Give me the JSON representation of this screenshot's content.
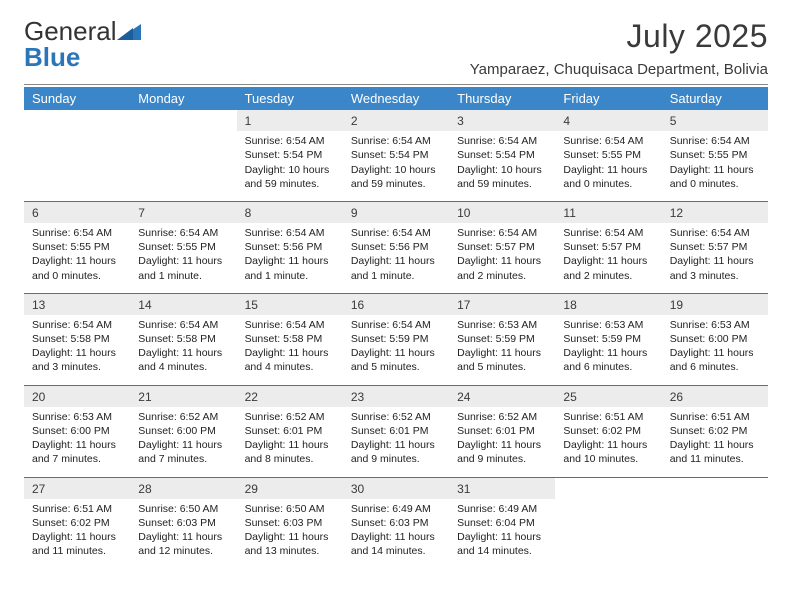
{
  "brand": {
    "word1": "General",
    "word2": "Blue"
  },
  "header": {
    "month_title": "July 2025",
    "location": "Yamparaez, Chuquisaca Department, Bolivia"
  },
  "colors": {
    "header_bg": "#3a86c8",
    "rule": "#3a78b0",
    "daybg": "#ececec"
  },
  "weekdays": [
    "Sunday",
    "Monday",
    "Tuesday",
    "Wednesday",
    "Thursday",
    "Friday",
    "Saturday"
  ],
  "weeks": [
    [
      null,
      null,
      {
        "n": "1",
        "sunrise": "Sunrise: 6:54 AM",
        "sunset": "Sunset: 5:54 PM",
        "daylight": "Daylight: 10 hours and 59 minutes."
      },
      {
        "n": "2",
        "sunrise": "Sunrise: 6:54 AM",
        "sunset": "Sunset: 5:54 PM",
        "daylight": "Daylight: 10 hours and 59 minutes."
      },
      {
        "n": "3",
        "sunrise": "Sunrise: 6:54 AM",
        "sunset": "Sunset: 5:54 PM",
        "daylight": "Daylight: 10 hours and 59 minutes."
      },
      {
        "n": "4",
        "sunrise": "Sunrise: 6:54 AM",
        "sunset": "Sunset: 5:55 PM",
        "daylight": "Daylight: 11 hours and 0 minutes."
      },
      {
        "n": "5",
        "sunrise": "Sunrise: 6:54 AM",
        "sunset": "Sunset: 5:55 PM",
        "daylight": "Daylight: 11 hours and 0 minutes."
      }
    ],
    [
      {
        "n": "6",
        "sunrise": "Sunrise: 6:54 AM",
        "sunset": "Sunset: 5:55 PM",
        "daylight": "Daylight: 11 hours and 0 minutes."
      },
      {
        "n": "7",
        "sunrise": "Sunrise: 6:54 AM",
        "sunset": "Sunset: 5:55 PM",
        "daylight": "Daylight: 11 hours and 1 minute."
      },
      {
        "n": "8",
        "sunrise": "Sunrise: 6:54 AM",
        "sunset": "Sunset: 5:56 PM",
        "daylight": "Daylight: 11 hours and 1 minute."
      },
      {
        "n": "9",
        "sunrise": "Sunrise: 6:54 AM",
        "sunset": "Sunset: 5:56 PM",
        "daylight": "Daylight: 11 hours and 1 minute."
      },
      {
        "n": "10",
        "sunrise": "Sunrise: 6:54 AM",
        "sunset": "Sunset: 5:57 PM",
        "daylight": "Daylight: 11 hours and 2 minutes."
      },
      {
        "n": "11",
        "sunrise": "Sunrise: 6:54 AM",
        "sunset": "Sunset: 5:57 PM",
        "daylight": "Daylight: 11 hours and 2 minutes."
      },
      {
        "n": "12",
        "sunrise": "Sunrise: 6:54 AM",
        "sunset": "Sunset: 5:57 PM",
        "daylight": "Daylight: 11 hours and 3 minutes."
      }
    ],
    [
      {
        "n": "13",
        "sunrise": "Sunrise: 6:54 AM",
        "sunset": "Sunset: 5:58 PM",
        "daylight": "Daylight: 11 hours and 3 minutes."
      },
      {
        "n": "14",
        "sunrise": "Sunrise: 6:54 AM",
        "sunset": "Sunset: 5:58 PM",
        "daylight": "Daylight: 11 hours and 4 minutes."
      },
      {
        "n": "15",
        "sunrise": "Sunrise: 6:54 AM",
        "sunset": "Sunset: 5:58 PM",
        "daylight": "Daylight: 11 hours and 4 minutes."
      },
      {
        "n": "16",
        "sunrise": "Sunrise: 6:54 AM",
        "sunset": "Sunset: 5:59 PM",
        "daylight": "Daylight: 11 hours and 5 minutes."
      },
      {
        "n": "17",
        "sunrise": "Sunrise: 6:53 AM",
        "sunset": "Sunset: 5:59 PM",
        "daylight": "Daylight: 11 hours and 5 minutes."
      },
      {
        "n": "18",
        "sunrise": "Sunrise: 6:53 AM",
        "sunset": "Sunset: 5:59 PM",
        "daylight": "Daylight: 11 hours and 6 minutes."
      },
      {
        "n": "19",
        "sunrise": "Sunrise: 6:53 AM",
        "sunset": "Sunset: 6:00 PM",
        "daylight": "Daylight: 11 hours and 6 minutes."
      }
    ],
    [
      {
        "n": "20",
        "sunrise": "Sunrise: 6:53 AM",
        "sunset": "Sunset: 6:00 PM",
        "daylight": "Daylight: 11 hours and 7 minutes."
      },
      {
        "n": "21",
        "sunrise": "Sunrise: 6:52 AM",
        "sunset": "Sunset: 6:00 PM",
        "daylight": "Daylight: 11 hours and 7 minutes."
      },
      {
        "n": "22",
        "sunrise": "Sunrise: 6:52 AM",
        "sunset": "Sunset: 6:01 PM",
        "daylight": "Daylight: 11 hours and 8 minutes."
      },
      {
        "n": "23",
        "sunrise": "Sunrise: 6:52 AM",
        "sunset": "Sunset: 6:01 PM",
        "daylight": "Daylight: 11 hours and 9 minutes."
      },
      {
        "n": "24",
        "sunrise": "Sunrise: 6:52 AM",
        "sunset": "Sunset: 6:01 PM",
        "daylight": "Daylight: 11 hours and 9 minutes."
      },
      {
        "n": "25",
        "sunrise": "Sunrise: 6:51 AM",
        "sunset": "Sunset: 6:02 PM",
        "daylight": "Daylight: 11 hours and 10 minutes."
      },
      {
        "n": "26",
        "sunrise": "Sunrise: 6:51 AM",
        "sunset": "Sunset: 6:02 PM",
        "daylight": "Daylight: 11 hours and 11 minutes."
      }
    ],
    [
      {
        "n": "27",
        "sunrise": "Sunrise: 6:51 AM",
        "sunset": "Sunset: 6:02 PM",
        "daylight": "Daylight: 11 hours and 11 minutes."
      },
      {
        "n": "28",
        "sunrise": "Sunrise: 6:50 AM",
        "sunset": "Sunset: 6:03 PM",
        "daylight": "Daylight: 11 hours and 12 minutes."
      },
      {
        "n": "29",
        "sunrise": "Sunrise: 6:50 AM",
        "sunset": "Sunset: 6:03 PM",
        "daylight": "Daylight: 11 hours and 13 minutes."
      },
      {
        "n": "30",
        "sunrise": "Sunrise: 6:49 AM",
        "sunset": "Sunset: 6:03 PM",
        "daylight": "Daylight: 11 hours and 14 minutes."
      },
      {
        "n": "31",
        "sunrise": "Sunrise: 6:49 AM",
        "sunset": "Sunset: 6:04 PM",
        "daylight": "Daylight: 11 hours and 14 minutes."
      },
      null,
      null
    ]
  ]
}
